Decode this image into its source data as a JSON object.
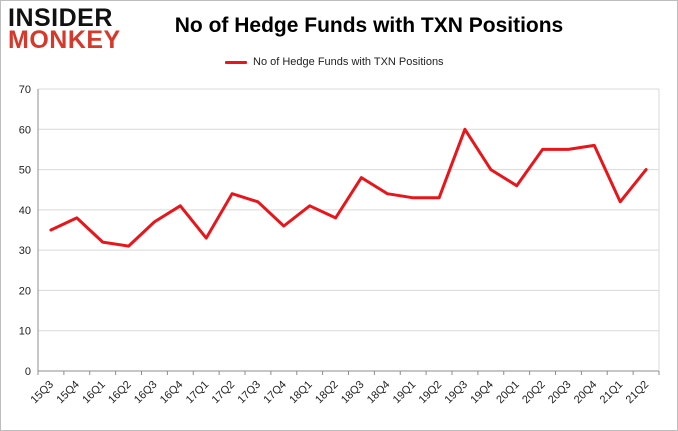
{
  "logo": {
    "line1": "INSIDER",
    "line2": "MONKEY"
  },
  "chart_data": {
    "type": "line",
    "title": "No of Hedge Funds with TXN Positions",
    "xlabel": "",
    "ylabel": "",
    "categories": [
      "15Q3",
      "15Q4",
      "16Q1",
      "16Q2",
      "16Q3",
      "16Q4",
      "17Q1",
      "17Q2",
      "17Q3",
      "17Q4",
      "18Q1",
      "18Q2",
      "18Q3",
      "18Q4",
      "19Q1",
      "19Q2",
      "19Q3",
      "19Q4",
      "20Q1",
      "20Q2",
      "20Q3",
      "20Q4",
      "21Q1",
      "21Q2"
    ],
    "series": [
      {
        "name": "No of Hedge Funds with TXN Positions",
        "values": [
          35,
          38,
          32,
          31,
          37,
          41,
          33,
          44,
          42,
          36,
          41,
          38,
          48,
          44,
          43,
          43,
          60,
          50,
          46,
          55,
          55,
          56,
          42,
          50
        ],
        "color": "#e8161b"
      }
    ],
    "ylim": [
      0,
      70
    ],
    "yticks": [
      0,
      10,
      20,
      30,
      40,
      50,
      60,
      70
    ],
    "grid": true,
    "legend_position": "top-center"
  }
}
